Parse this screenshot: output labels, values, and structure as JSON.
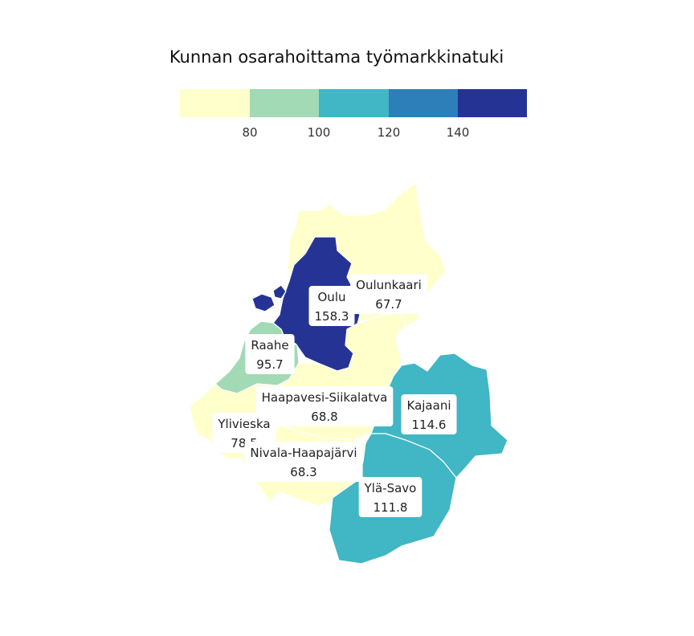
{
  "title": "Kunnan osarahoittama työmarkkinatuki",
  "legend": {
    "ticks": [
      "80",
      "100",
      "120",
      "140"
    ],
    "bins": [
      {
        "color": "#ffffcc"
      },
      {
        "color": "#a1dab4"
      },
      {
        "color": "#41b6c4"
      },
      {
        "color": "#2c7fb8"
      },
      {
        "color": "#253494"
      }
    ]
  },
  "regions": [
    {
      "id": "oulunkaari",
      "name": "Oulunkaari",
      "value": "67.7",
      "color": "#ffffcc"
    },
    {
      "id": "oulu",
      "name": "Oulu",
      "value": "158.3",
      "color": "#253494"
    },
    {
      "id": "raahe",
      "name": "Raahe",
      "value": "95.7",
      "color": "#a1dab4"
    },
    {
      "id": "haapavesi-siikalatva",
      "name": "Haapavesi-Siikalatva",
      "value": "68.8",
      "color": "#ffffcc"
    },
    {
      "id": "kajaani",
      "name": "Kajaani",
      "value": "114.6",
      "color": "#41b6c4"
    },
    {
      "id": "ylivieska",
      "name": "Ylivieska",
      "value": "78.5",
      "color": "#ffffcc"
    },
    {
      "id": "nivala-haapajarvi",
      "name": "Nivala-Haapajärvi",
      "value": "68.3",
      "color": "#ffffcc"
    },
    {
      "id": "yla-savo",
      "name": "Ylä-Savo",
      "value": "111.8",
      "color": "#41b6c4"
    }
  ]
}
